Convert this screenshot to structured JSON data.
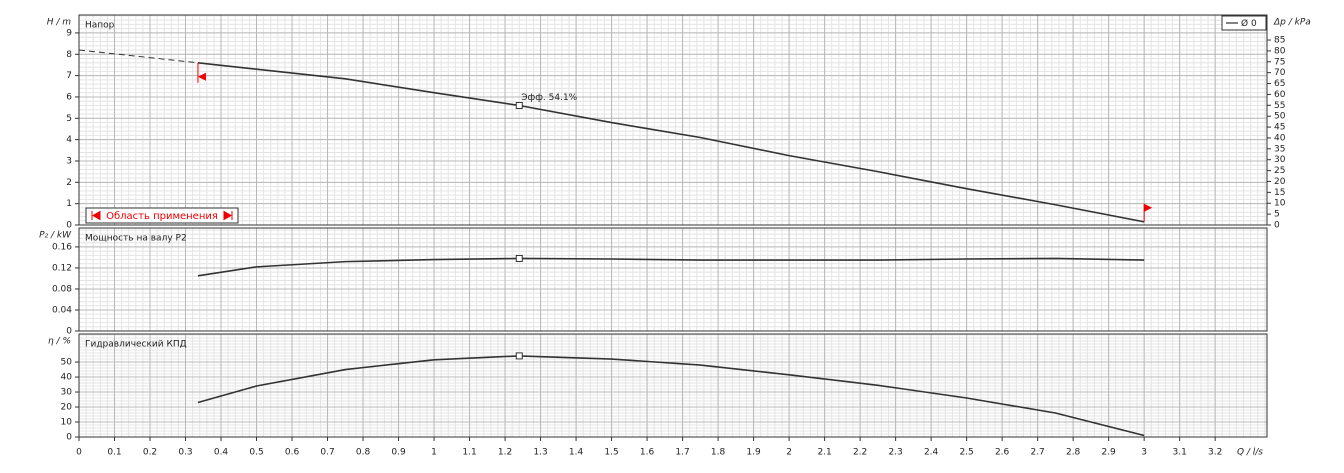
{
  "chart_data": [
    {
      "type": "line",
      "title": "Напор",
      "ylabel": "H / m",
      "y2label": "Δp / kPa",
      "xlim": [
        0,
        3.346
      ],
      "ylim": [
        0,
        9.84
      ],
      "yticks": [
        0,
        1,
        2,
        3,
        4,
        5,
        6,
        7,
        8,
        9
      ],
      "y2lim": [
        0,
        96.5
      ],
      "y2ticks": [
        0,
        5,
        10,
        15,
        20,
        25,
        30,
        35,
        40,
        45,
        50,
        55,
        60,
        65,
        70,
        75,
        80,
        85
      ],
      "grid": true,
      "series": [
        {
          "name": "Ø 0",
          "color": "#333333",
          "x": [
            0.335,
            0.5,
            0.75,
            1.0,
            1.24,
            1.5,
            1.75,
            2.0,
            2.25,
            2.5,
            2.75,
            3.0
          ],
          "values": [
            7.6,
            7.3,
            6.85,
            6.2,
            5.6,
            4.8,
            4.1,
            3.25,
            2.5,
            1.7,
            0.95,
            0.15
          ]
        }
      ],
      "extrapolation": {
        "x": [
          0,
          0.335
        ],
        "values": [
          8.2,
          7.6
        ]
      },
      "operating_point": {
        "x": 1.24,
        "y": 5.6
      },
      "annotation": "Эфф. 54.1%",
      "range_label": "Область применения"
    },
    {
      "type": "line",
      "title": "Мощность на валу P2",
      "ylabel": "P₂ / kW",
      "xlim": [
        0,
        3.346
      ],
      "ylim": [
        0,
        0.196
      ],
      "yticks": [
        0,
        0.04,
        0.08,
        0.12,
        0.16
      ],
      "grid": true,
      "series": [
        {
          "color": "#333333",
          "x": [
            0.335,
            0.5,
            0.75,
            1.0,
            1.24,
            1.5,
            1.75,
            2.0,
            2.25,
            2.5,
            2.75,
            3.0
          ],
          "values": [
            0.105,
            0.122,
            0.132,
            0.136,
            0.138,
            0.137,
            0.135,
            0.135,
            0.135,
            0.137,
            0.138,
            0.135
          ]
        }
      ],
      "operating_point": {
        "x": 1.24,
        "y": 0.138
      }
    },
    {
      "type": "line",
      "title": "Гидравлический КПД",
      "ylabel": "η / %",
      "xlabel": "Q / l/s",
      "xlim": [
        0,
        3.346
      ],
      "ylim": [
        0,
        68.7
      ],
      "yticks": [
        0,
        10,
        20,
        30,
        40,
        50
      ],
      "grid": true,
      "xticks": [
        0,
        0.1,
        0.2,
        0.3,
        0.4,
        0.5,
        0.6,
        0.7,
        0.8,
        0.9,
        1,
        1.1,
        1.2,
        1.3,
        1.4,
        1.5,
        1.6,
        1.7,
        1.8,
        1.9,
        2,
        2.1,
        2.2,
        2.3,
        2.4,
        2.5,
        2.6,
        2.7,
        2.8,
        2.9,
        3,
        3.1,
        3.2
      ],
      "series": [
        {
          "color": "#333333",
          "x": [
            0.335,
            0.5,
            0.75,
            1.0,
            1.24,
            1.5,
            1.75,
            2.0,
            2.25,
            2.5,
            2.75,
            3.0
          ],
          "values": [
            23,
            34,
            45,
            51.5,
            54.1,
            52,
            48,
            41.5,
            34.5,
            26,
            16,
            1
          ]
        }
      ],
      "operating_point": {
        "x": 1.24,
        "y": 54.1
      }
    }
  ]
}
